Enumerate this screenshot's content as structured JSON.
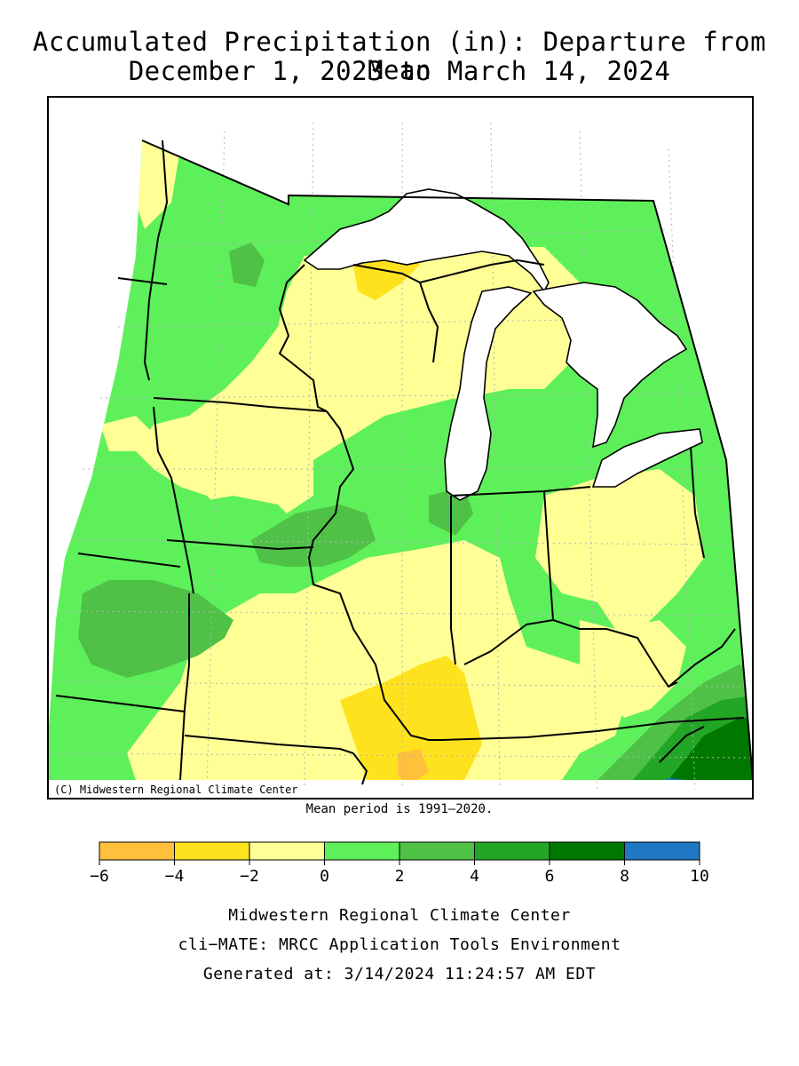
{
  "title_line1": "Accumulated Precipitation (in): Departure from Mean",
  "title_line2": "December 1, 2023 to March 14, 2024",
  "copyright": "(C) Midwestern Regional Climate Center",
  "mean_period": "Mean period is 1991–2020.",
  "legend": {
    "bins": [
      {
        "from": -6,
        "to": -4,
        "color": "#ffc03c"
      },
      {
        "from": -4,
        "to": -2,
        "color": "#ffe21e"
      },
      {
        "from": -2,
        "to": 0,
        "color": "#ffff96"
      },
      {
        "from": 0,
        "to": 2,
        "color": "#5ef05a"
      },
      {
        "from": 2,
        "to": 4,
        "color": "#4ec146"
      },
      {
        "from": 4,
        "to": 6,
        "color": "#22a625"
      },
      {
        "from": 6,
        "to": 8,
        "color": "#007800"
      },
      {
        "from": 8,
        "to": 10,
        "color": "#1e78c3"
      }
    ],
    "ticks": [
      "−6",
      "−4",
      "−2",
      "0",
      "2",
      "4",
      "6",
      "8",
      "10"
    ]
  },
  "footer": {
    "line1": "Midwestern Regional Climate Center",
    "line2": "cli−MATE: MRCC Application Tools Environment",
    "line3": "Generated at: 3/14/2024 11:24:57 AM EDT"
  },
  "colors": {
    "lake": "#ffffff",
    "border": "#000000",
    "grid": "#b4b4b4"
  }
}
